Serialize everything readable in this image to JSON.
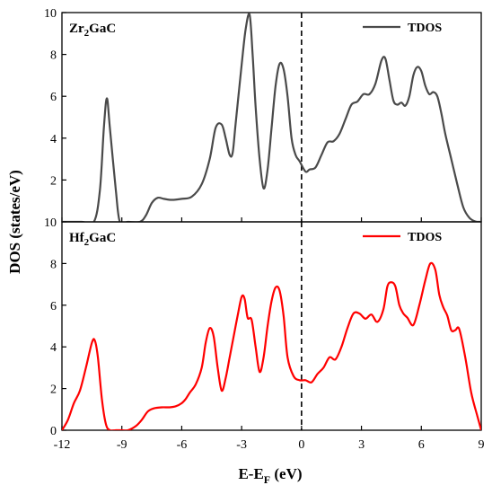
{
  "chart_data": [
    {
      "type": "line",
      "panel_label": {
        "base": "Zr",
        "sub": "2",
        "rest": "GaC"
      },
      "legend": "TDOS",
      "color": "#4a4a4a",
      "xlim": [
        -12,
        9
      ],
      "ylim": [
        0,
        10
      ],
      "yticks": [
        2,
        4,
        6,
        8,
        10
      ],
      "ytick_labels": [
        "2",
        "4",
        "6",
        "8",
        "10"
      ],
      "fermi_line_x": 0,
      "series": [
        {
          "name": "TDOS",
          "x": [
            -12,
            -11.0,
            -10.4,
            -10.1,
            -9.9,
            -9.75,
            -9.6,
            -9.3,
            -9.1,
            -8.7,
            -8.1,
            -7.8,
            -7.5,
            -7.2,
            -6.9,
            -6.5,
            -6.0,
            -5.5,
            -5.0,
            -4.6,
            -4.3,
            -4.0,
            -3.8,
            -3.6,
            -3.45,
            -3.3,
            -3.0,
            -2.8,
            -2.6,
            -2.45,
            -2.3,
            -2.1,
            -1.9,
            -1.7,
            -1.5,
            -1.3,
            -1.1,
            -0.9,
            -0.7,
            -0.5,
            -0.3,
            -0.1,
            0.2,
            0.4,
            0.7,
            1.0,
            1.3,
            1.6,
            1.9,
            2.2,
            2.5,
            2.8,
            3.1,
            3.4,
            3.7,
            4.0,
            4.2,
            4.4,
            4.6,
            4.8,
            5.0,
            5.2,
            5.4,
            5.6,
            5.8,
            6.0,
            6.2,
            6.4,
            6.6,
            6.8,
            7.0,
            7.2,
            7.5,
            7.8,
            8.1,
            8.4,
            8.7,
            9.0
          ],
          "y": [
            0,
            0,
            0,
            1.5,
            4.5,
            5.9,
            4.5,
            1.5,
            0,
            0,
            0,
            0.3,
            0.9,
            1.15,
            1.1,
            1.05,
            1.1,
            1.2,
            1.8,
            3.0,
            4.5,
            4.65,
            4.0,
            3.2,
            3.3,
            4.7,
            7.5,
            9.2,
            9.9,
            8.0,
            5.5,
            3.0,
            1.6,
            2.5,
            4.5,
            6.5,
            7.55,
            7.3,
            6.0,
            4.0,
            3.2,
            2.9,
            2.4,
            2.5,
            2.6,
            3.2,
            3.8,
            3.85,
            4.2,
            4.9,
            5.6,
            5.75,
            6.1,
            6.1,
            6.6,
            7.7,
            7.8,
            6.8,
            5.8,
            5.6,
            5.7,
            5.55,
            6.0,
            7.0,
            7.4,
            7.2,
            6.5,
            6.1,
            6.2,
            6.0,
            5.2,
            4.2,
            3.0,
            1.8,
            0.7,
            0.2,
            0.02,
            0
          ]
        }
      ]
    },
    {
      "type": "line",
      "panel_label": {
        "base": "Hf",
        "sub": "2",
        "rest": "GaC"
      },
      "legend": "TDOS",
      "color": "#ff0000",
      "xlim": [
        -12,
        9
      ],
      "ylim": [
        0,
        10
      ],
      "yticks": [
        0,
        2,
        4,
        6,
        8,
        10
      ],
      "ytick_labels": [
        "0",
        "2",
        "4",
        "6",
        "8",
        "10"
      ],
      "fermi_line_x": 0,
      "xticks": [
        -12,
        -9,
        -6,
        -3,
        0,
        3,
        6,
        9
      ],
      "xtick_labels": [
        "-12",
        "-9",
        "-6",
        "-3",
        "0",
        "3",
        "6",
        "9"
      ],
      "series": [
        {
          "name": "TDOS",
          "x": [
            -12,
            -11.7,
            -11.4,
            -11.1,
            -10.8,
            -10.5,
            -10.35,
            -10.2,
            -10.0,
            -9.8,
            -9.6,
            -9.3,
            -9.0,
            -8.7,
            -8.3,
            -8.0,
            -7.7,
            -7.4,
            -7.0,
            -6.6,
            -6.3,
            -6.0,
            -5.8,
            -5.6,
            -5.3,
            -5.0,
            -4.8,
            -4.6,
            -4.4,
            -4.2,
            -4.0,
            -3.8,
            -3.6,
            -3.4,
            -3.2,
            -3.0,
            -2.85,
            -2.7,
            -2.5,
            -2.3,
            -2.1,
            -1.9,
            -1.7,
            -1.5,
            -1.3,
            -1.1,
            -0.9,
            -0.7,
            -0.4,
            -0.1,
            0.2,
            0.5,
            0.8,
            1.1,
            1.4,
            1.7,
            2.0,
            2.3,
            2.6,
            2.9,
            3.2,
            3.5,
            3.8,
            4.1,
            4.3,
            4.5,
            4.7,
            4.9,
            5.1,
            5.3,
            5.6,
            5.9,
            6.2,
            6.45,
            6.7,
            6.9,
            7.1,
            7.3,
            7.5,
            7.7,
            7.9,
            8.2,
            8.5,
            8.8,
            9.0
          ],
          "y": [
            0,
            0.5,
            1.3,
            1.9,
            3.0,
            4.2,
            4.3,
            3.5,
            1.5,
            0.3,
            0,
            0,
            0,
            0,
            0.2,
            0.5,
            0.9,
            1.05,
            1.1,
            1.1,
            1.15,
            1.3,
            1.5,
            1.8,
            2.2,
            3.0,
            4.2,
            4.9,
            4.5,
            3.0,
            1.9,
            2.5,
            3.5,
            4.5,
            5.5,
            6.4,
            6.3,
            5.4,
            5.3,
            4.0,
            2.8,
            3.5,
            5.0,
            6.2,
            6.85,
            6.7,
            5.5,
            3.5,
            2.6,
            2.4,
            2.4,
            2.3,
            2.7,
            3.0,
            3.5,
            3.4,
            4.0,
            4.9,
            5.6,
            5.6,
            5.35,
            5.55,
            5.2,
            5.8,
            6.9,
            7.1,
            6.9,
            6.0,
            5.6,
            5.4,
            5.05,
            6.0,
            7.2,
            8.0,
            7.7,
            6.5,
            5.9,
            5.5,
            4.8,
            4.8,
            4.85,
            3.5,
            1.8,
            0.7,
            0
          ]
        }
      ]
    }
  ],
  "axes": {
    "ylabel": "DOS (states/eV)",
    "xlabel": {
      "base": "E-E",
      "sub": "F",
      "rest": " (eV)"
    }
  }
}
